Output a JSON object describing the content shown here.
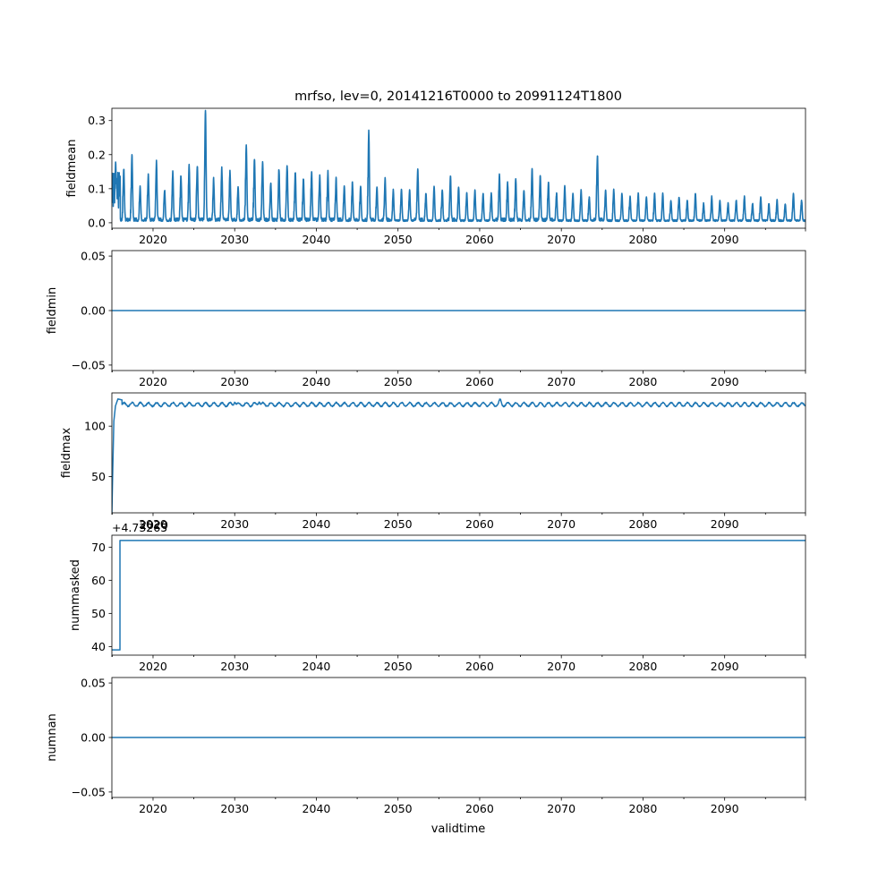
{
  "title": "mrfso, lev=0, 20141216T0000 to 20991124T1800",
  "xlabel": "validtime",
  "colors": {
    "series": "#1f77b4",
    "axes": "#000000",
    "background": "#ffffff"
  },
  "chart_data": [
    {
      "type": "line",
      "ylabel": "fieldmean",
      "xlim": [
        2014.96,
        2099.9
      ],
      "ylim": [
        -0.016,
        0.336
      ],
      "xticks": [
        2020,
        2030,
        2040,
        2050,
        2060,
        2070,
        2080,
        2090
      ],
      "yticks": [
        0.0,
        0.1,
        0.2,
        0.3
      ],
      "ytick_labels": [
        "0.0",
        "0.1",
        "0.2",
        "0.3"
      ],
      "series": [
        {
          "annual_peaks": {
            "years": [
              2015,
              2016,
              2017,
              2018,
              2019,
              2020,
              2021,
              2022,
              2023,
              2024,
              2025,
              2026,
              2027,
              2028,
              2029,
              2030,
              2031,
              2032,
              2033,
              2034,
              2035,
              2036,
              2037,
              2038,
              2039,
              2040,
              2041,
              2042,
              2043,
              2044,
              2045,
              2046,
              2047,
              2048,
              2049,
              2050,
              2051,
              2052,
              2053,
              2054,
              2055,
              2056,
              2057,
              2058,
              2059,
              2060,
              2061,
              2062,
              2063,
              2064,
              2065,
              2066,
              2067,
              2068,
              2069,
              2070,
              2071,
              2072,
              2073,
              2074,
              2075,
              2076,
              2077,
              2078,
              2079,
              2080,
              2081,
              2082,
              2083,
              2084,
              2085,
              2086,
              2087,
              2088,
              2089,
              2090,
              2091,
              2092,
              2093,
              2094,
              2095,
              2096,
              2097,
              2098,
              2099
            ],
            "values": [
              0.17,
              0.15,
              0.19,
              0.1,
              0.13,
              0.17,
              0.09,
              0.14,
              0.13,
              0.16,
              0.16,
              0.325,
              0.12,
              0.15,
              0.14,
              0.1,
              0.22,
              0.18,
              0.17,
              0.11,
              0.15,
              0.16,
              0.14,
              0.12,
              0.14,
              0.13,
              0.14,
              0.12,
              0.1,
              0.11,
              0.1,
              0.26,
              0.1,
              0.12,
              0.09,
              0.09,
              0.09,
              0.15,
              0.08,
              0.1,
              0.09,
              0.13,
              0.1,
              0.08,
              0.09,
              0.08,
              0.08,
              0.13,
              0.11,
              0.12,
              0.09,
              0.15,
              0.13,
              0.11,
              0.08,
              0.1,
              0.08,
              0.09,
              0.07,
              0.19,
              0.09,
              0.09,
              0.08,
              0.07,
              0.08,
              0.07,
              0.08,
              0.08,
              0.06,
              0.07,
              0.06,
              0.08,
              0.05,
              0.07,
              0.06,
              0.05,
              0.06,
              0.07,
              0.05,
              0.07,
              0.05,
              0.06,
              0.05,
              0.08,
              0.06
            ]
          }
        }
      ]
    },
    {
      "type": "line",
      "ylabel": "fieldmin",
      "xlim": [
        2014.96,
        2099.9
      ],
      "ylim": [
        -0.055,
        0.055
      ],
      "xticks": [
        2020,
        2030,
        2040,
        2050,
        2060,
        2070,
        2080,
        2090
      ],
      "yticks": [
        -0.05,
        0.0,
        0.05
      ],
      "ytick_labels": [
        "−0.05",
        "0.00",
        "0.05"
      ],
      "series": [
        {
          "constant": 0.0
        }
      ]
    },
    {
      "type": "line",
      "ylabel": "fieldmax",
      "xlim": [
        2014.96,
        2099.9
      ],
      "ylim": [
        14,
        133
      ],
      "xticks": [
        2020,
        2030,
        2040,
        2050,
        2060,
        2070,
        2080,
        2090
      ],
      "yticks": [
        50,
        100
      ],
      "ytick_labels": [
        "50",
        "100"
      ],
      "series": [
        {
          "spinup": {
            "x": [
              2014.96,
              2015.05,
              2015.2,
              2015.4,
              2015.7,
              2016.2
            ],
            "y": [
              14,
              50,
              105,
              120,
              127,
              126
            ]
          },
          "steady_level": 121.5,
          "notable_peaks": [
            {
              "x": 2030,
              "y": 127
            },
            {
              "x": 2033,
              "y": 127
            },
            {
              "x": 2062.5,
              "y": 127
            }
          ]
        }
      ]
    },
    {
      "type": "line",
      "ylabel": "nummasked",
      "offset_text": "+4.73265",
      "xlim": [
        2014.96,
        2099.9
      ],
      "ylim": [
        37.4,
        73.6
      ],
      "xticks": [
        2020,
        2030,
        2040,
        2050,
        2060,
        2070,
        2080,
        2090
      ],
      "yticks": [
        40,
        50,
        60,
        70
      ],
      "ytick_labels": [
        "40",
        "50",
        "60",
        "70"
      ],
      "series": [
        {
          "x": [
            2014.96,
            2015.95,
            2015.95,
            2099.9
          ],
          "y": [
            39,
            39,
            72,
            72
          ]
        }
      ]
    },
    {
      "type": "line",
      "ylabel": "numnan",
      "xlim": [
        2014.96,
        2099.9
      ],
      "ylim": [
        -0.055,
        0.055
      ],
      "xticks": [
        2020,
        2030,
        2040,
        2050,
        2060,
        2070,
        2080,
        2090
      ],
      "yticks": [
        -0.05,
        0.0,
        0.05
      ],
      "ytick_labels": [
        "−0.05",
        "0.00",
        "0.05"
      ],
      "series": [
        {
          "constant": 0.0
        }
      ]
    }
  ],
  "overlap_artifact_label": "2020"
}
